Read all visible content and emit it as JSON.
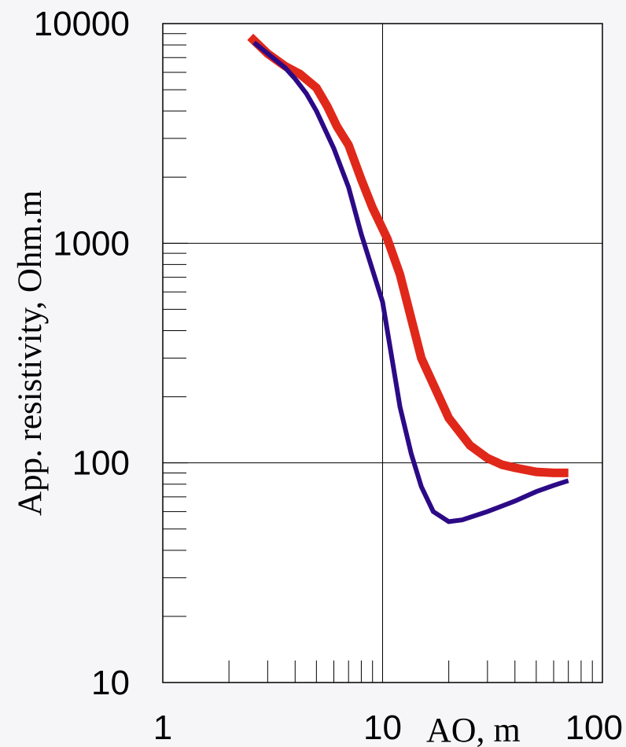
{
  "chart_data": {
    "type": "line",
    "xlabel": "AO, m",
    "ylabel": "App. resistivity, Ohm.m",
    "x_scale": "log",
    "y_scale": "log",
    "xlim": [
      1,
      100
    ],
    "ylim": [
      10,
      10000
    ],
    "x_tick_labels": [
      "1",
      "10",
      "100"
    ],
    "y_tick_labels": [
      "10",
      "100",
      "1000",
      "10000"
    ],
    "grid": true,
    "colors": {
      "red_series": "#e0281a",
      "blue_series": "#2c0a86",
      "axes": "#000000",
      "background": "#ffffff"
    },
    "series": [
      {
        "color": "#e0281a",
        "x": [
          2.5,
          3.0,
          3.6,
          4.2,
          5.0,
          5.6,
          6.2,
          7.0,
          8.0,
          9.0,
          10.5,
          12.0,
          15.0,
          20.0,
          25.0,
          30.0,
          35.0,
          40.0,
          50.0,
          60.0,
          70.0
        ],
        "y": [
          8700,
          7300,
          6400,
          5900,
          5100,
          4200,
          3400,
          2800,
          1950,
          1450,
          1050,
          720,
          300,
          160,
          120,
          105,
          98,
          95,
          91,
          90,
          90
        ]
      },
      {
        "color": "#2c0a86",
        "x": [
          2.6,
          3.0,
          3.6,
          4.0,
          4.5,
          5.0,
          6.0,
          7.0,
          8.0,
          10.0,
          12.0,
          13.5,
          15.0,
          17.0,
          20.0,
          23.0,
          30.0,
          40.0,
          50.0,
          60.0,
          70.0
        ],
        "y": [
          8200,
          7300,
          6300,
          5600,
          4800,
          4000,
          2700,
          1800,
          1100,
          540,
          180,
          110,
          78,
          60,
          54,
          55,
          60,
          67,
          74,
          79,
          83
        ]
      }
    ]
  }
}
